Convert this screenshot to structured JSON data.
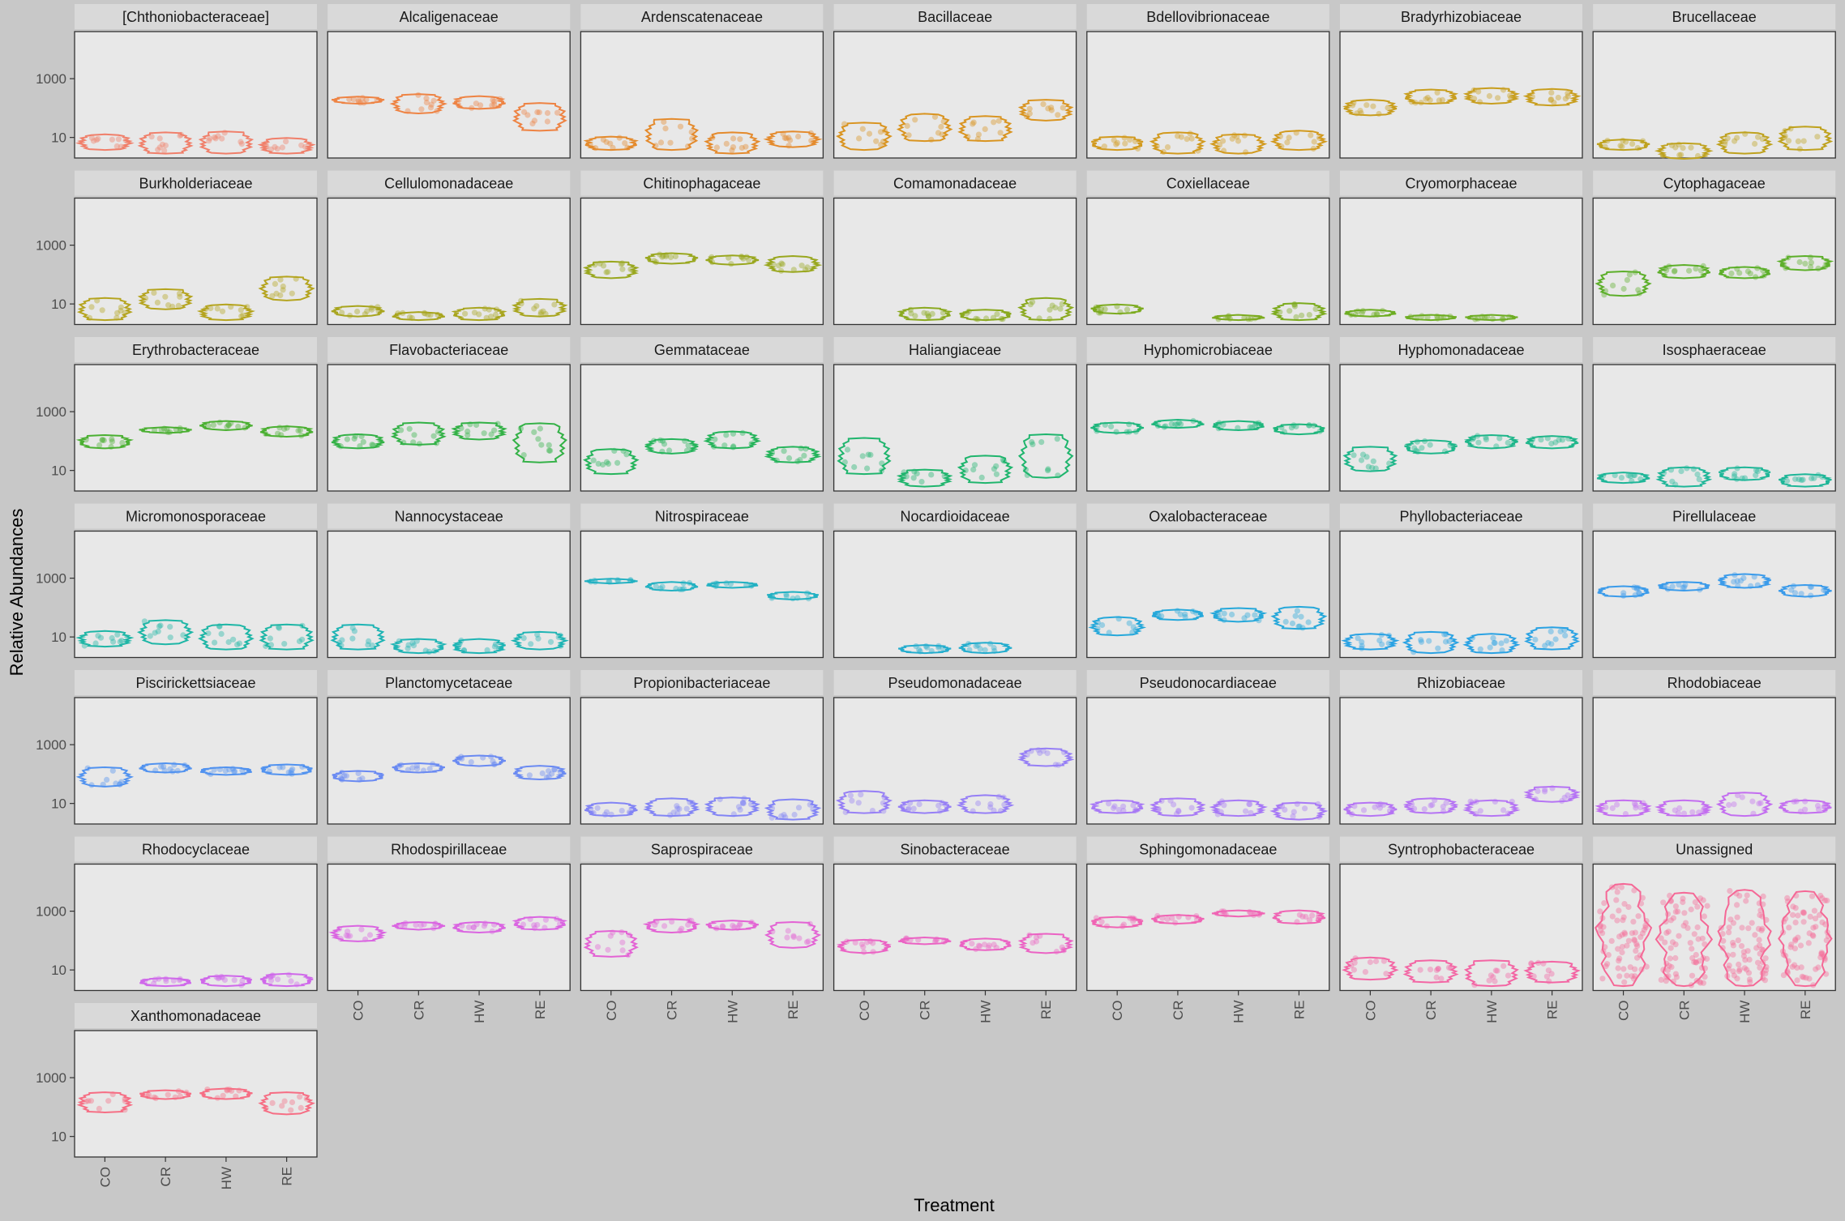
{
  "chart_data": {
    "type": "violin",
    "xlabel": "Treatment",
    "ylabel": "Relative Abundances",
    "y_scale": "log10",
    "y_ticks": [
      10,
      1000
    ],
    "y_tick_labels": [
      "10",
      "1000"
    ],
    "ylim": [
      2,
      40000
    ],
    "categories": [
      "CO",
      "CR",
      "HW",
      "RE"
    ],
    "grid": false,
    "facets": [
      {
        "name": "[Chthoniobacteraceae]",
        "color": "#F07F6A",
        "groups": {
          "CO": [
            4,
            12
          ],
          "CR": [
            3,
            14
          ],
          "HW": [
            3,
            15
          ],
          "RE": [
            3,
            9
          ]
        }
      },
      {
        "name": "Alcaligenaceae",
        "color": "#EE8343",
        "groups": {
          "CO": [
            150,
            230
          ],
          "CR": [
            70,
            280
          ],
          "HW": [
            100,
            240
          ],
          "RE": [
            18,
            140
          ]
        }
      },
      {
        "name": "Ardenscatenaceae",
        "color": "#E48A2C",
        "groups": {
          "CO": [
            4,
            10
          ],
          "CR": [
            4,
            40
          ],
          "HW": [
            3,
            14
          ],
          "RE": [
            5,
            15
          ]
        }
      },
      {
        "name": "Bacillaceae",
        "color": "#D99420",
        "groups": {
          "CO": [
            4,
            30
          ],
          "CR": [
            8,
            60
          ],
          "HW": [
            8,
            50
          ],
          "RE": [
            40,
            180
          ]
        }
      },
      {
        "name": "Bdellovibrionaceae",
        "color": "#D29A1E",
        "groups": {
          "CO": [
            4,
            10
          ],
          "CR": [
            3,
            14
          ],
          "HW": [
            3,
            12
          ],
          "RE": [
            4,
            16
          ]
        }
      },
      {
        "name": "Bradyrhizobiaceae",
        "color": "#C89E1E",
        "groups": {
          "CO": [
            60,
            180
          ],
          "CR": [
            150,
            400
          ],
          "HW": [
            150,
            450
          ],
          "RE": [
            130,
            420
          ]
        }
      },
      {
        "name": "Brucellaceae",
        "color": "#BFA21E",
        "groups": {
          "CO": [
            4,
            8
          ],
          "CR": [
            2,
            6
          ],
          "HW": [
            3,
            14
          ],
          "RE": [
            4,
            22
          ]
        }
      },
      {
        "name": "Burkholderiaceae",
        "color": "#B5A41E",
        "groups": {
          "CO": [
            3,
            15
          ],
          "CR": [
            7,
            30
          ],
          "HW": [
            3,
            9
          ],
          "RE": [
            14,
            80
          ]
        }
      },
      {
        "name": "Cellulomonadaceae",
        "color": "#A8A51E",
        "groups": {
          "CO": [
            4,
            8
          ],
          "CR": [
            3,
            5
          ],
          "HW": [
            3,
            7
          ],
          "RE": [
            4,
            14
          ]
        }
      },
      {
        "name": "Chitinophagaceae",
        "color": "#99A71E",
        "groups": {
          "CO": [
            80,
            260
          ],
          "CR": [
            250,
            500
          ],
          "HW": [
            230,
            420
          ],
          "RE": [
            130,
            400
          ]
        }
      },
      {
        "name": "Comamonadaceae",
        "color": "#8AA91E",
        "groups": {
          "CO": [],
          "CR": [
            3,
            7
          ],
          "HW": [
            3,
            6
          ],
          "RE": [
            3,
            15
          ]
        }
      },
      {
        "name": "Coxiellaceae",
        "color": "#7CAB1E",
        "groups": {
          "CO": [
            5,
            9
          ],
          "CR": [],
          "HW": [
            3,
            4
          ],
          "RE": [
            3,
            10
          ]
        }
      },
      {
        "name": "Cryomorphaceae",
        "color": "#6DAD22",
        "groups": {
          "CO": [
            4,
            6
          ],
          "CR": [
            3,
            4
          ],
          "HW": [
            3,
            4
          ],
          "RE": []
        }
      },
      {
        "name": "Cytophagaceae",
        "color": "#5DAF2A",
        "groups": {
          "CO": [
            20,
            120
          ],
          "CR": [
            80,
            200
          ],
          "HW": [
            80,
            170
          ],
          "RE": [
            150,
            400
          ]
        }
      },
      {
        "name": "Erythrobacteraceae",
        "color": "#4BB032",
        "groups": {
          "CO": [
            60,
            150
          ],
          "CR": [
            200,
            280
          ],
          "HW": [
            250,
            450
          ],
          "RE": [
            150,
            300
          ]
        }
      },
      {
        "name": "Flavobacteriaceae",
        "color": "#33B146",
        "groups": {
          "CO": [
            60,
            160
          ],
          "CR": [
            80,
            400
          ],
          "HW": [
            120,
            400
          ],
          "RE": [
            20,
            380
          ]
        }
      },
      {
        "name": "Gemmataceae",
        "color": "#25B45B",
        "groups": {
          "CO": [
            8,
            50
          ],
          "CR": [
            40,
            110
          ],
          "HW": [
            60,
            200
          ],
          "RE": [
            20,
            60
          ]
        }
      },
      {
        "name": "Haliangiaceae",
        "color": "#1FB56D",
        "groups": {
          "CO": [
            8,
            120
          ],
          "CR": [
            3,
            10
          ],
          "HW": [
            4,
            30
          ],
          "RE": [
            6,
            160
          ]
        }
      },
      {
        "name": "Hyphomicrobiaceae",
        "color": "#1EB67C",
        "groups": {
          "CO": [
            200,
            400
          ],
          "CR": [
            300,
            500
          ],
          "HW": [
            250,
            450
          ],
          "RE": [
            180,
            350
          ]
        }
      },
      {
        "name": "Hyphomonadaceae",
        "color": "#1EB68A",
        "groups": {
          "CO": [
            10,
            60
          ],
          "CR": [
            40,
            100
          ],
          "HW": [
            60,
            150
          ],
          "RE": [
            60,
            140
          ]
        }
      },
      {
        "name": "Isosphaeraceae",
        "color": "#1EB698",
        "groups": {
          "CO": [
            4,
            8
          ],
          "CR": [
            3,
            12
          ],
          "HW": [
            5,
            12
          ],
          "RE": [
            3,
            7
          ]
        }
      },
      {
        "name": "Micromonosporaceae",
        "color": "#1EB6A6",
        "groups": {
          "CO": [
            5,
            15
          ],
          "CR": [
            6,
            35
          ],
          "HW": [
            4,
            25
          ],
          "RE": [
            4,
            25
          ]
        }
      },
      {
        "name": "Nannocystaceae",
        "color": "#1EB4B4",
        "groups": {
          "CO": [
            4,
            25
          ],
          "CR": [
            3,
            8
          ],
          "HW": [
            3,
            8
          ],
          "RE": [
            4,
            14
          ]
        }
      },
      {
        "name": "Nitrospiraceae",
        "color": "#22B1C2",
        "groups": {
          "CO": [
            700,
            900
          ],
          "CR": [
            400,
            700
          ],
          "HW": [
            500,
            700
          ],
          "RE": [
            200,
            320
          ]
        }
      },
      {
        "name": "Nocardioidaceae",
        "color": "#24ADCE",
        "groups": {
          "CO": [],
          "CR": [
            3,
            5
          ],
          "HW": [
            3,
            6
          ],
          "RE": []
        }
      },
      {
        "name": "Oxalobacteraceae",
        "color": "#26A8DA",
        "groups": {
          "CO": [
            12,
            45
          ],
          "CR": [
            40,
            80
          ],
          "HW": [
            35,
            90
          ],
          "RE": [
            20,
            100
          ]
        }
      },
      {
        "name": "Phyllobacteriaceae",
        "color": "#2AA2E3",
        "groups": {
          "CO": [
            4,
            12
          ],
          "CR": [
            3,
            14
          ],
          "HW": [
            3,
            12
          ],
          "RE": [
            4,
            20
          ]
        }
      },
      {
        "name": "Pirellulaceae",
        "color": "#3B9BEA",
        "groups": {
          "CO": [
            250,
            500
          ],
          "CR": [
            400,
            700
          ],
          "HW": [
            500,
            1300
          ],
          "RE": [
            250,
            550
          ]
        }
      },
      {
        "name": "Piscirickettsiaceae",
        "color": "#5192EF",
        "groups": {
          "CO": [
            40,
            160
          ],
          "CR": [
            120,
            220
          ],
          "HW": [
            100,
            160
          ],
          "RE": [
            100,
            200
          ]
        }
      },
      {
        "name": "Planctomycetaceae",
        "color": "#6A8AF2",
        "groups": {
          "CO": [
            60,
            120
          ],
          "CR": [
            120,
            220
          ],
          "HW": [
            200,
            400
          ],
          "RE": [
            70,
            180
          ]
        }
      },
      {
        "name": "Propionibacteriaceae",
        "color": "#8284F5",
        "groups": {
          "CO": [
            4,
            10
          ],
          "CR": [
            4,
            14
          ],
          "HW": [
            4,
            15
          ],
          "RE": [
            3,
            13
          ]
        }
      },
      {
        "name": "Pseudomonadaceae",
        "color": "#967FF6",
        "groups": {
          "CO": [
            5,
            25
          ],
          "CR": [
            5,
            12
          ],
          "HW": [
            5,
            18
          ],
          "RE": [
            200,
            700
          ]
        }
      },
      {
        "name": "Pseudonocardiaceae",
        "color": "#A779F6",
        "groups": {
          "CO": [
            5,
            12
          ],
          "CR": [
            4,
            14
          ],
          "HW": [
            4,
            12
          ],
          "RE": [
            3,
            10
          ]
        }
      },
      {
        "name": "Rhizobiaceae",
        "color": "#B574F4",
        "groups": {
          "CO": [
            4,
            10
          ],
          "CR": [
            5,
            14
          ],
          "HW": [
            4,
            12
          ],
          "RE": [
            12,
            35
          ]
        }
      },
      {
        "name": "Rhodobiaceae",
        "color": "#C36EF0",
        "groups": {
          "CO": [
            4,
            12
          ],
          "CR": [
            4,
            12
          ],
          "HW": [
            4,
            22
          ],
          "RE": [
            5,
            12
          ]
        }
      },
      {
        "name": "Rhodocyclaceae",
        "color": "#CF68EA",
        "groups": {
          "CO": [],
          "CR": [
            3,
            5
          ],
          "HW": [
            3,
            6
          ],
          "RE": [
            3,
            7
          ]
        }
      },
      {
        "name": "Rhodospirillaceae",
        "color": "#DA65E1",
        "groups": {
          "CO": [
            100,
            300
          ],
          "CR": [
            250,
            400
          ],
          "HW": [
            200,
            400
          ],
          "RE": [
            250,
            600
          ]
        }
      },
      {
        "name": "Saprospiraceae",
        "color": "#E363D4",
        "groups": {
          "CO": [
            30,
            200
          ],
          "CR": [
            200,
            500
          ],
          "HW": [
            250,
            450
          ],
          "RE": [
            60,
            400
          ]
        }
      },
      {
        "name": "Sinobacteraceae",
        "color": "#EB63C4",
        "groups": {
          "CO": [
            40,
            100
          ],
          "CR": [
            80,
            120
          ],
          "HW": [
            50,
            110
          ],
          "RE": [
            40,
            160
          ]
        }
      },
      {
        "name": "Sphingomonadaceae",
        "color": "#F064B4",
        "groups": {
          "CO": [
            300,
            600
          ],
          "CR": [
            400,
            700
          ],
          "HW": [
            700,
            1000
          ],
          "RE": [
            400,
            1000
          ]
        }
      },
      {
        "name": "Syntrophobacteraceae",
        "color": "#F366A4",
        "groups": {
          "CO": [
            5,
            25
          ],
          "CR": [
            4,
            20
          ],
          "HW": [
            3,
            20
          ],
          "RE": [
            4,
            18
          ]
        }
      },
      {
        "name": "Unassigned",
        "color": "#F56896",
        "groups": {
          "CO": [
            3,
            8000
          ],
          "CR": [
            3,
            4000
          ],
          "HW": [
            3,
            5000
          ],
          "RE": [
            3,
            4500
          ]
        }
      },
      {
        "name": "Xanthomonadaceae",
        "color": "#F66E84",
        "groups": {
          "CO": [
            70,
            300
          ],
          "CR": [
            200,
            350
          ],
          "HW": [
            200,
            400
          ],
          "RE": [
            60,
            300
          ]
        }
      }
    ]
  }
}
